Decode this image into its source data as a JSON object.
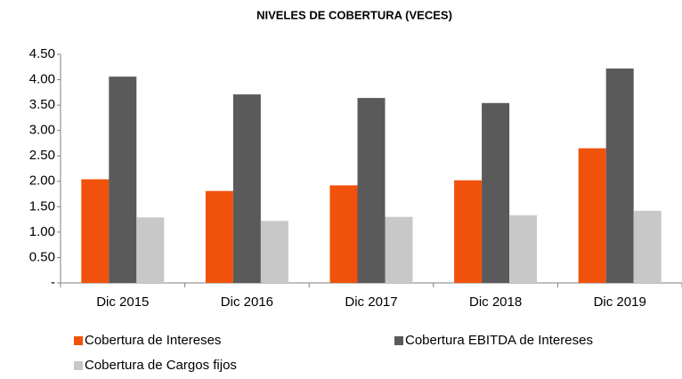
{
  "chart_data": {
    "type": "bar",
    "title": "NIVELES DE COBERTURA (VECES)",
    "categories": [
      "Dic 2015",
      "Dic 2016",
      "Dic 2017",
      "Dic 2018",
      "Dic 2019"
    ],
    "series": [
      {
        "name": "Cobertura de Intereses",
        "color": "#f0520c",
        "values": [
          2.04,
          1.81,
          1.92,
          2.02,
          2.65
        ]
      },
      {
        "name": "Cobertura EBITDA de Intereses",
        "color": "#5a5a5a",
        "values": [
          4.06,
          3.71,
          3.64,
          3.54,
          4.22
        ]
      },
      {
        "name": "Cobertura de Cargos fijos",
        "color": "#c8c8c8",
        "values": [
          1.29,
          1.22,
          1.3,
          1.33,
          1.42
        ]
      }
    ],
    "ylim": [
      0,
      4.5
    ],
    "yticks": [
      {
        "value": 0,
        "label": "-"
      },
      {
        "value": 0.5,
        "label": "0.50"
      },
      {
        "value": 1,
        "label": "1.00"
      },
      {
        "value": 1.5,
        "label": "1.50"
      },
      {
        "value": 2,
        "label": "2.00"
      },
      {
        "value": 2.5,
        "label": "2.50"
      },
      {
        "value": 3,
        "label": "3.00"
      },
      {
        "value": 3.5,
        "label": "3.50"
      },
      {
        "value": 4,
        "label": "4.00"
      },
      {
        "value": 4.5,
        "label": "4.50"
      }
    ],
    "grid": false
  }
}
